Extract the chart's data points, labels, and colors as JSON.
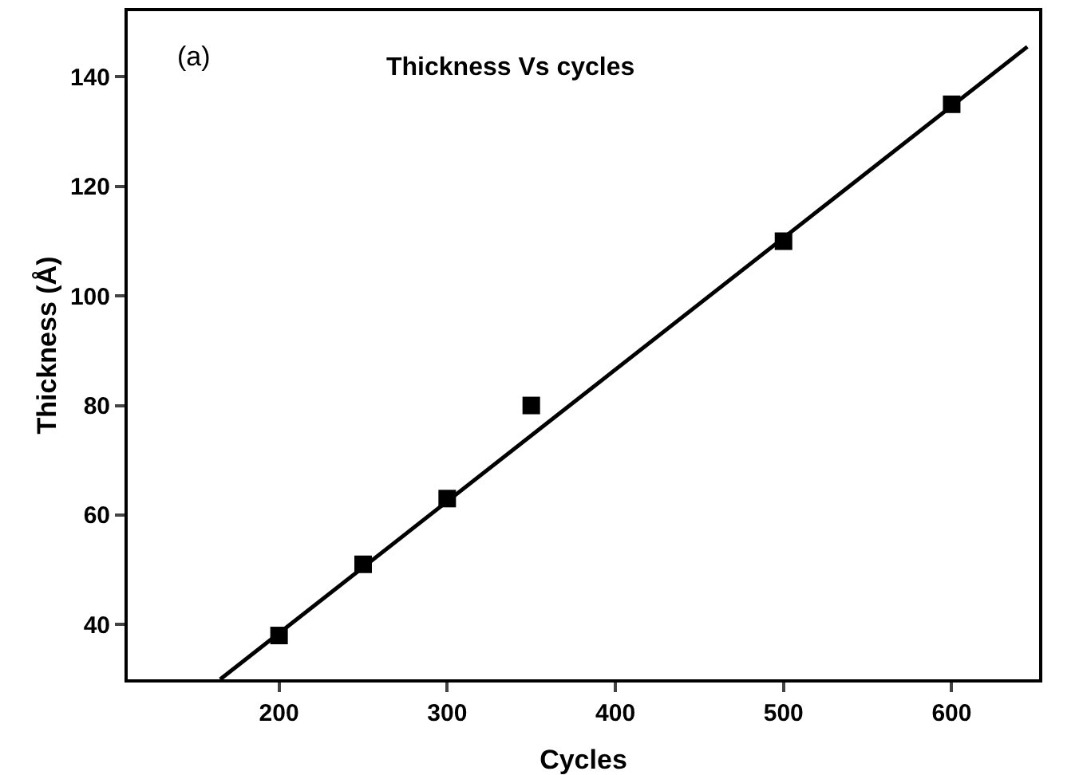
{
  "chart_data": {
    "type": "scatter",
    "xlabel": "Cycles",
    "ylabel": "Thickness (Å)",
    "annotations": [
      "(a)",
      "Thickness Vs cycles"
    ],
    "x": [
      200,
      250,
      300,
      350,
      500,
      600
    ],
    "series": [
      {
        "color": "#000000",
        "marker": "square",
        "values": [
          38,
          51,
          63,
          80,
          110,
          135
        ]
      },
      {
        "type": "line",
        "color": "#000000",
        "marker": "none",
        "line_style": "solid",
        "x": [
          165,
          645
        ],
        "values": [
          30,
          145.5
        ]
      }
    ],
    "xlim": [
      110,
      652
    ],
    "ylim": [
      30,
      152
    ],
    "xticks": [
      200,
      300,
      400,
      500,
      600
    ],
    "yticks": [
      40,
      60,
      80,
      100,
      120,
      140
    ],
    "grid": false
  }
}
